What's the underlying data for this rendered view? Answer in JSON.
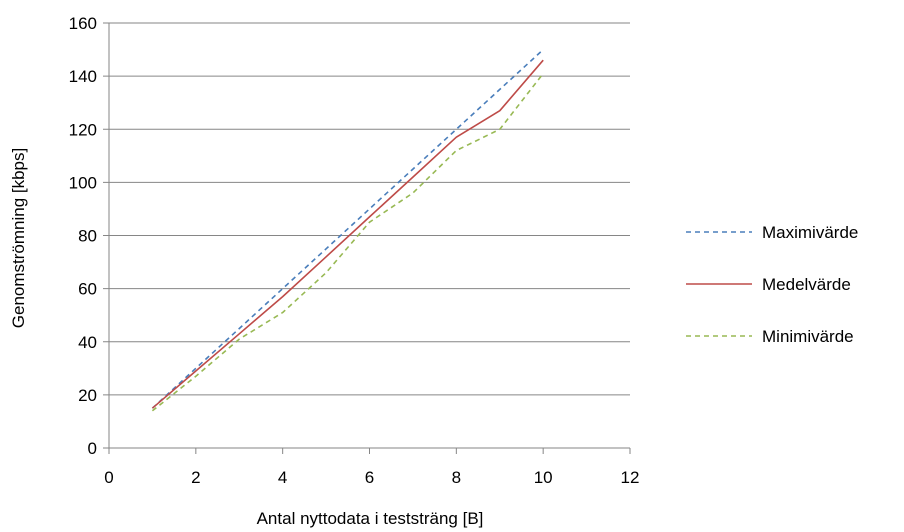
{
  "chart_data": {
    "type": "line",
    "title": "",
    "xlabel": "Antal nyttodata i teststräng [B]",
    "ylabel": "Genomströmning [kbps]",
    "xlim": [
      0,
      12
    ],
    "ylim": [
      0,
      160
    ],
    "x_ticks": [
      "0",
      "2",
      "4",
      "6",
      "8",
      "10",
      "12"
    ],
    "y_ticks": [
      "0",
      "20",
      "40",
      "60",
      "80",
      "100",
      "120",
      "140",
      "160"
    ],
    "grid": "horizontal",
    "legend_position": "right",
    "x": [
      1,
      2,
      3,
      4,
      5,
      6,
      7,
      8,
      9,
      10
    ],
    "series": [
      {
        "name": "Maximivärde",
        "color": "#4a7ebb",
        "dash": "dashed",
        "values": [
          15,
          30,
          45,
          60,
          75,
          90,
          105,
          120,
          135,
          150
        ]
      },
      {
        "name": "Medelvärde",
        "color": "#be4b48",
        "dash": "solid",
        "values": [
          15,
          29,
          43,
          57,
          72,
          87,
          102,
          117,
          127,
          146
        ]
      },
      {
        "name": "Minimivärde",
        "color": "#98b954",
        "dash": "dashed",
        "values": [
          14,
          27,
          41,
          51,
          66,
          85,
          96,
          112,
          120,
          141
        ]
      }
    ]
  }
}
